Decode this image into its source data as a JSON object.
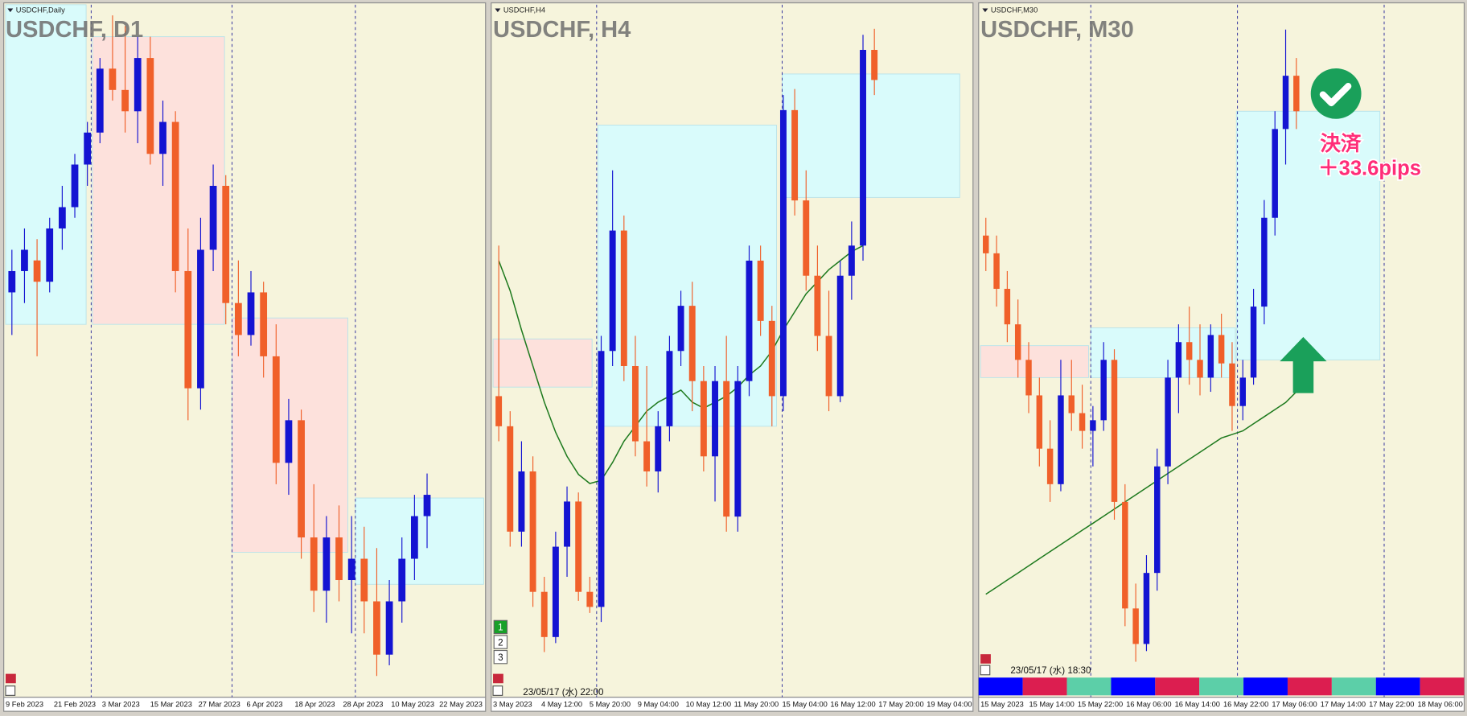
{
  "chart_data": [
    {
      "type": "candlestick",
      "label": "USDCHF,Daily",
      "title": "USDCHF, D1",
      "x_labels": [
        "9 Feb 2023",
        "21 Feb 2023",
        "3 Mar 2023",
        "15 Mar 2023",
        "27 Mar 2023",
        "6 Apr 2023",
        "18 Apr 2023",
        "28 Apr 2023",
        "10 May 2023",
        "22 May 2023"
      ],
      "xlim": [
        0,
        38
      ],
      "ylim": [
        0.88,
        0.945
      ],
      "up_color": "#1414d2",
      "down_color": "#f0602a",
      "candles": [
        [
          0.918,
          0.922,
          0.914,
          0.92
        ],
        [
          0.92,
          0.924,
          0.917,
          0.922
        ],
        [
          0.921,
          0.923,
          0.912,
          0.919
        ],
        [
          0.919,
          0.925,
          0.918,
          0.924
        ],
        [
          0.924,
          0.928,
          0.922,
          0.926
        ],
        [
          0.926,
          0.931,
          0.925,
          0.93
        ],
        [
          0.93,
          0.934,
          0.928,
          0.933
        ],
        [
          0.933,
          0.94,
          0.932,
          0.939
        ],
        [
          0.939,
          0.944,
          0.936,
          0.937
        ],
        [
          0.937,
          0.943,
          0.933,
          0.935
        ],
        [
          0.935,
          0.942,
          0.932,
          0.94
        ],
        [
          0.94,
          0.942,
          0.93,
          0.931
        ],
        [
          0.931,
          0.936,
          0.928,
          0.934
        ],
        [
          0.934,
          0.935,
          0.918,
          0.92
        ],
        [
          0.92,
          0.924,
          0.906,
          0.909
        ],
        [
          0.909,
          0.925,
          0.907,
          0.922
        ],
        [
          0.922,
          0.93,
          0.92,
          0.928
        ],
        [
          0.928,
          0.929,
          0.915,
          0.917
        ],
        [
          0.917,
          0.921,
          0.912,
          0.914
        ],
        [
          0.914,
          0.92,
          0.913,
          0.918
        ],
        [
          0.918,
          0.919,
          0.91,
          0.912
        ],
        [
          0.912,
          0.915,
          0.9,
          0.902
        ],
        [
          0.902,
          0.908,
          0.899,
          0.906
        ],
        [
          0.906,
          0.907,
          0.893,
          0.895
        ],
        [
          0.895,
          0.9,
          0.888,
          0.89
        ],
        [
          0.89,
          0.897,
          0.887,
          0.895
        ],
        [
          0.895,
          0.898,
          0.889,
          0.891
        ],
        [
          0.891,
          0.897,
          0.886,
          0.893
        ],
        [
          0.893,
          0.896,
          0.886,
          0.889
        ],
        [
          0.889,
          0.894,
          0.882,
          0.884
        ],
        [
          0.884,
          0.891,
          0.883,
          0.889
        ],
        [
          0.889,
          0.895,
          0.887,
          0.893
        ],
        [
          0.893,
          0.899,
          0.891,
          0.897
        ],
        [
          0.897,
          0.901,
          0.894,
          0.899
        ]
      ],
      "zones": [
        {
          "x": [
            0,
            6.4
          ],
          "y": [
            0.945,
            0.915
          ],
          "color": "#d9fbfb"
        },
        {
          "x": [
            6.9,
            17.4
          ],
          "y": [
            0.942,
            0.915
          ],
          "color": "#fde1dc"
        },
        {
          "x": [
            18,
            27.2
          ],
          "y": [
            0.9156,
            0.8936
          ],
          "color": "#fde1dc"
        },
        {
          "x": [
            27.8,
            38
          ],
          "y": [
            0.8987,
            0.8906
          ],
          "color": "#d9fbfb"
        }
      ],
      "separators": [
        6.8,
        18,
        27.8
      ]
    },
    {
      "type": "candlestick",
      "label": "USDCHF,H4",
      "title": "USDCHF, H4",
      "x_labels": [
        "3 May 2023",
        "4 May 12:00",
        "5 May 20:00",
        "9 May 04:00",
        "10 May 12:00",
        "11 May 20:00",
        "15 May 04:00",
        "16 May 12:00",
        "17 May 20:00",
        "19 May 04:00"
      ],
      "xlim": [
        0,
        42
      ],
      "ylim": [
        0.884,
        0.907
      ],
      "up_color": "#1414d2",
      "down_color": "#f0602a",
      "candles": [
        [
          0.894,
          0.899,
          0.8925,
          0.893
        ],
        [
          0.893,
          0.8935,
          0.889,
          0.8895
        ],
        [
          0.8895,
          0.8925,
          0.889,
          0.8915
        ],
        [
          0.8915,
          0.892,
          0.887,
          0.8875
        ],
        [
          0.8875,
          0.888,
          0.8855,
          0.886
        ],
        [
          0.886,
          0.8895,
          0.8858,
          0.889
        ],
        [
          0.889,
          0.891,
          0.888,
          0.8905
        ],
        [
          0.8905,
          0.8908,
          0.8872,
          0.8875
        ],
        [
          0.8875,
          0.888,
          0.8868,
          0.887
        ],
        [
          0.887,
          0.896,
          0.8865,
          0.8955
        ],
        [
          0.8955,
          0.9015,
          0.895,
          0.8995
        ],
        [
          0.8995,
          0.9,
          0.8945,
          0.895
        ],
        [
          0.895,
          0.896,
          0.892,
          0.8925
        ],
        [
          0.8925,
          0.895,
          0.891,
          0.8915
        ],
        [
          0.8915,
          0.8935,
          0.8908,
          0.893
        ],
        [
          0.893,
          0.896,
          0.8925,
          0.8955
        ],
        [
          0.8955,
          0.8975,
          0.895,
          0.897
        ],
        [
          0.897,
          0.8978,
          0.8935,
          0.8945
        ],
        [
          0.8945,
          0.895,
          0.8915,
          0.892
        ],
        [
          0.892,
          0.895,
          0.8905,
          0.8945
        ],
        [
          0.8945,
          0.896,
          0.8895,
          0.89
        ],
        [
          0.89,
          0.895,
          0.8895,
          0.8945
        ],
        [
          0.8945,
          0.899,
          0.894,
          0.8985
        ],
        [
          0.8985,
          0.899,
          0.896,
          0.8965
        ],
        [
          0.8965,
          0.897,
          0.893,
          0.894
        ],
        [
          0.894,
          0.904,
          0.8935,
          0.9035
        ],
        [
          0.9035,
          0.9042,
          0.9,
          0.9005
        ],
        [
          0.9005,
          0.9015,
          0.8975,
          0.898
        ],
        [
          0.898,
          0.899,
          0.8955,
          0.896
        ],
        [
          0.896,
          0.8975,
          0.8935,
          0.894
        ],
        [
          0.894,
          0.8985,
          0.8938,
          0.898
        ],
        [
          0.898,
          0.8998,
          0.8972,
          0.899
        ],
        [
          0.899,
          0.906,
          0.8985,
          0.9055
        ],
        [
          0.9055,
          0.9062,
          0.904,
          0.9045
        ]
      ],
      "ma": {
        "color": "#1e7a1e",
        "values": [
          0.8985,
          0.8975,
          0.8962,
          0.895,
          0.8938,
          0.8928,
          0.892,
          0.8914,
          0.8911,
          0.8912,
          0.8918,
          0.8925,
          0.893,
          0.8935,
          0.8938,
          0.894,
          0.8942,
          0.8938,
          0.8936,
          0.8938,
          0.894,
          0.8943,
          0.8947,
          0.895,
          0.8955,
          0.8962,
          0.8968,
          0.8974,
          0.8978,
          0.8982,
          0.8985,
          0.8988,
          0.899,
          null
        ]
      },
      "zones": [
        {
          "x": [
            0,
            8.7
          ],
          "y": [
            0.8959,
            0.8943
          ],
          "color": "#fde1dc"
        },
        {
          "x": [
            9.2,
            24.9
          ],
          "y": [
            0.903,
            0.893
          ],
          "color": "#d9fbfb"
        },
        {
          "x": [
            25.4,
            41
          ],
          "y": [
            0.9047,
            0.9006
          ],
          "color": "#d9fbfb"
        }
      ],
      "separators": [
        9.1,
        25.4
      ],
      "footer": "23/05/17 (水) 22:00",
      "buttons": [
        "1",
        "2",
        "3"
      ]
    },
    {
      "type": "candlestick",
      "label": "USDCHF,M30",
      "title": "USDCHF, M30",
      "x_labels": [
        "15 May 2023",
        "15 May 14:00",
        "15 May 22:00",
        "16 May 06:00",
        "16 May 14:00",
        "16 May 22:00",
        "17 May 06:00",
        "17 May 14:00",
        "17 May 22:00",
        "18 May 06:00"
      ],
      "xlim": [
        0,
        45
      ],
      "ylim": [
        0.888,
        0.9075
      ],
      "up_color": "#1414d2",
      "down_color": "#f0602a",
      "candles": [
        [
          0.901,
          0.9015,
          0.9,
          0.9005
        ],
        [
          0.9005,
          0.901,
          0.899,
          0.8995
        ],
        [
          0.8995,
          0.9,
          0.898,
          0.8985
        ],
        [
          0.8985,
          0.8992,
          0.897,
          0.8975
        ],
        [
          0.8975,
          0.898,
          0.896,
          0.8965
        ],
        [
          0.8965,
          0.897,
          0.8945,
          0.895
        ],
        [
          0.895,
          0.8958,
          0.8935,
          0.894
        ],
        [
          0.894,
          0.8975,
          0.8938,
          0.8965
        ],
        [
          0.8965,
          0.8975,
          0.8955,
          0.896
        ],
        [
          0.896,
          0.8968,
          0.895,
          0.8955
        ],
        [
          0.8955,
          0.8962,
          0.8945,
          0.8958
        ],
        [
          0.8958,
          0.898,
          0.8955,
          0.8975
        ],
        [
          0.8975,
          0.8978,
          0.893,
          0.8935
        ],
        [
          0.8935,
          0.894,
          0.89,
          0.8905
        ],
        [
          0.8905,
          0.8912,
          0.889,
          0.8895
        ],
        [
          0.8895,
          0.892,
          0.8893,
          0.8915
        ],
        [
          0.8915,
          0.895,
          0.891,
          0.8945
        ],
        [
          0.8945,
          0.8975,
          0.894,
          0.897
        ],
        [
          0.897,
          0.8985,
          0.896,
          0.898
        ],
        [
          0.898,
          0.899,
          0.8968,
          0.8975
        ],
        [
          0.8975,
          0.8985,
          0.8965,
          0.897
        ],
        [
          0.897,
          0.8985,
          0.8966,
          0.8982
        ],
        [
          0.8982,
          0.8988,
          0.897,
          0.8974
        ],
        [
          0.8974,
          0.898,
          0.8955,
          0.8962
        ],
        [
          0.8962,
          0.8975,
          0.8958,
          0.897
        ],
        [
          0.897,
          0.8995,
          0.8968,
          0.899
        ],
        [
          0.899,
          0.902,
          0.8985,
          0.9015
        ],
        [
          0.9015,
          0.9045,
          0.901,
          0.904
        ],
        [
          0.904,
          0.9068,
          0.903,
          0.9055
        ],
        [
          0.9055,
          0.906,
          0.904,
          0.9045
        ]
      ],
      "ma": {
        "color": "#1e7a1e",
        "values": [
          0.8909,
          0.8911,
          0.8913,
          0.8915,
          0.8917,
          0.8919,
          0.8921,
          0.8923,
          0.8925,
          0.8927,
          0.8929,
          0.8931,
          0.8933,
          0.8935,
          0.8937,
          0.8939,
          0.8941,
          0.8943,
          0.8945,
          0.8947,
          0.8949,
          0.8951,
          0.8953,
          0.8954,
          0.8955,
          0.8957,
          0.8959,
          0.8961,
          0.8963,
          0.8966
        ]
      },
      "zones": [
        {
          "x": [
            0,
            10.1
          ],
          "y": [
            0.8979,
            0.897
          ],
          "color": "#fde1dc"
        },
        {
          "x": [
            10.3,
            23.8
          ],
          "y": [
            0.8984,
            0.897
          ],
          "color": "#d9fbfb"
        },
        {
          "x": [
            23.9,
            37.3
          ],
          "y": [
            0.9045,
            0.8975
          ],
          "color": "#d9fbfb"
        }
      ],
      "separators": [
        10.3,
        24,
        37.7
      ],
      "footer": "23/05/17 (水) 18:30",
      "strip": [
        "#0000ff",
        "#dc1e50",
        "#5ccfa8",
        "#0000ff",
        "#dc1e50",
        "#5ccfa8",
        "#0000ff",
        "#dc1e50",
        "#5ccfa8",
        "#0000ff",
        "#dc1e50"
      ],
      "annotations": {
        "action": "決済",
        "result": "＋33.6pips"
      }
    }
  ]
}
